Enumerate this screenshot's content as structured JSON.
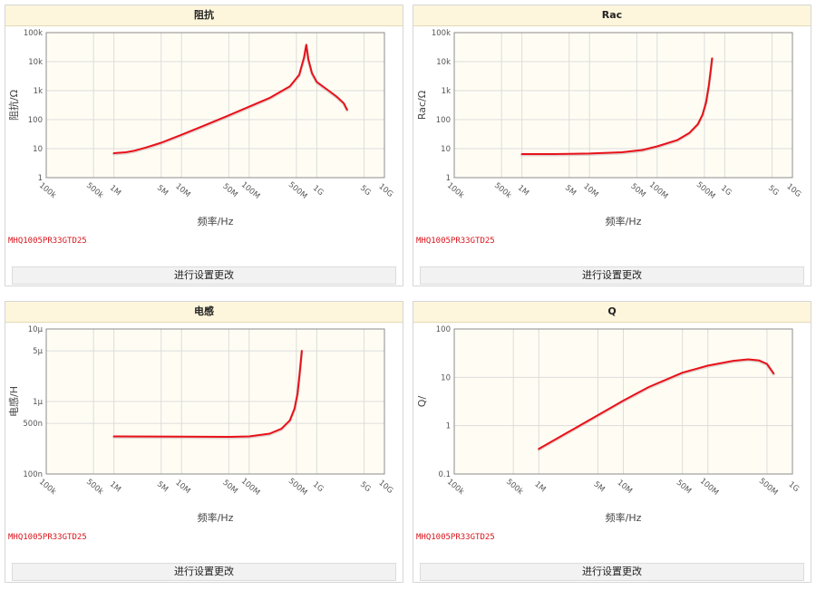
{
  "panels": [
    {
      "title": "阻抗",
      "part": "MHQ1005PR33GTD25",
      "button": "进行设置更改"
    },
    {
      "title": "Rac",
      "part": "MHQ1005PR33GTD25",
      "button": "进行设置更改"
    },
    {
      "title": "电感",
      "part": "MHQ1005PR33GTD25",
      "button": "进行设置更改"
    },
    {
      "title": "Q",
      "part": "MHQ1005PR33GTD25",
      "button": "进行设置更改"
    }
  ],
  "chart_data": [
    {
      "type": "line",
      "title": "阻抗",
      "xlabel": "频率/Hz",
      "ylabel": "阻抗/Ω",
      "xscale": "log",
      "yscale": "log",
      "xlim": [
        100000,
        10000000000
      ],
      "ylim": [
        1,
        100000
      ],
      "x_ticks": [
        "100k",
        "500k",
        "1M",
        "5M",
        "10M",
        "50M",
        "100M",
        "500M",
        "1G",
        "5G",
        "10G"
      ],
      "y_ticks": [
        "1",
        "10",
        "100",
        "1k",
        "10k",
        "100k"
      ],
      "series": [
        {
          "color": "#e8111a",
          "points": [
            [
              1000000,
              7
            ],
            [
              1500000,
              7.5
            ],
            [
              2000000,
              8.5
            ],
            [
              3000000,
              11
            ],
            [
              5000000,
              16
            ],
            [
              10000000,
              30
            ],
            [
              20000000,
              58
            ],
            [
              50000000,
              140
            ],
            [
              100000000,
              280
            ],
            [
              200000000,
              560
            ],
            [
              400000000,
              1400
            ],
            [
              550000000,
              3500
            ],
            [
              650000000,
              14000
            ],
            [
              700000000,
              38000
            ],
            [
              750000000,
              12000
            ],
            [
              850000000,
              4000
            ],
            [
              1000000000,
              2000
            ],
            [
              1500000000,
              1000
            ],
            [
              2000000000,
              600
            ],
            [
              2500000000,
              370
            ],
            [
              2800000000,
              220
            ]
          ]
        }
      ],
      "grid": true,
      "legend": "none"
    },
    {
      "type": "line",
      "title": "Rac",
      "xlabel": "频率/Hz",
      "ylabel": "Rac/Ω",
      "xscale": "log",
      "yscale": "log",
      "xlim": [
        100000,
        10000000000
      ],
      "ylim": [
        1,
        100000
      ],
      "x_ticks": [
        "100k",
        "500k",
        "1M",
        "5M",
        "10M",
        "50M",
        "100M",
        "500M",
        "1G",
        "5G",
        "10G"
      ],
      "y_ticks": [
        "1",
        "10",
        "100",
        "1k",
        "10k",
        "100k"
      ],
      "series": [
        {
          "color": "#e8111a",
          "points": [
            [
              1000000,
              6.5
            ],
            [
              3000000,
              6.5
            ],
            [
              10000000,
              6.8
            ],
            [
              30000000,
              7.5
            ],
            [
              60000000,
              9
            ],
            [
              100000000,
              12
            ],
            [
              200000000,
              20
            ],
            [
              300000000,
              35
            ],
            [
              400000000,
              70
            ],
            [
              470000000,
              150
            ],
            [
              530000000,
              400
            ],
            [
              580000000,
              1500
            ],
            [
              620000000,
              5000
            ],
            [
              650000000,
              13000
            ]
          ]
        }
      ],
      "grid": true,
      "legend": "none"
    },
    {
      "type": "line",
      "title": "电感",
      "xlabel": "频率/Hz",
      "ylabel": "电感/H",
      "xscale": "log",
      "yscale": "log",
      "xlim": [
        100000,
        10000000000
      ],
      "ylim": [
        1e-07,
        1e-05
      ],
      "x_ticks": [
        "100k",
        "500k",
        "1M",
        "5M",
        "10M",
        "50M",
        "100M",
        "500M",
        "1G",
        "5G",
        "10G"
      ],
      "y_ticks": [
        "100n",
        "500n",
        "1μ",
        "5μ",
        "10μ"
      ],
      "series": [
        {
          "color": "#e8111a",
          "points": [
            [
              1000000,
              3.3e-07
            ],
            [
              10000000,
              3.28e-07
            ],
            [
              50000000,
              3.25e-07
            ],
            [
              100000000,
              3.3e-07
            ],
            [
              200000000,
              3.6e-07
            ],
            [
              300000000,
              4.2e-07
            ],
            [
              400000000,
              5.5e-07
            ],
            [
              470000000,
              8e-07
            ],
            [
              520000000,
              1.3e-06
            ],
            [
              560000000,
              2.5e-06
            ],
            [
              600000000,
              5e-06
            ]
          ]
        }
      ],
      "grid": true,
      "legend": "none"
    },
    {
      "type": "line",
      "title": "Q",
      "xlabel": "频率/Hz",
      "ylabel": "Q/",
      "xscale": "log",
      "yscale": "log",
      "xlim": [
        100000,
        1000000000
      ],
      "ylim": [
        0.1,
        100
      ],
      "x_ticks": [
        "100k",
        "500k",
        "1M",
        "5M",
        "10M",
        "50M",
        "100M",
        "500M",
        "1G"
      ],
      "y_ticks": [
        "0.1",
        "1",
        "10",
        "100"
      ],
      "series": [
        {
          "color": "#e8111a",
          "points": [
            [
              1000000,
              0.33
            ],
            [
              2000000,
              0.66
            ],
            [
              5000000,
              1.65
            ],
            [
              10000000,
              3.3
            ],
            [
              20000000,
              6.3
            ],
            [
              50000000,
              12.5
            ],
            [
              100000000,
              17.5
            ],
            [
              200000000,
              22
            ],
            [
              300000000,
              23.5
            ],
            [
              400000000,
              22.5
            ],
            [
              500000000,
              19
            ],
            [
              600000000,
              12
            ]
          ]
        }
      ],
      "grid": true,
      "legend": "none"
    }
  ]
}
